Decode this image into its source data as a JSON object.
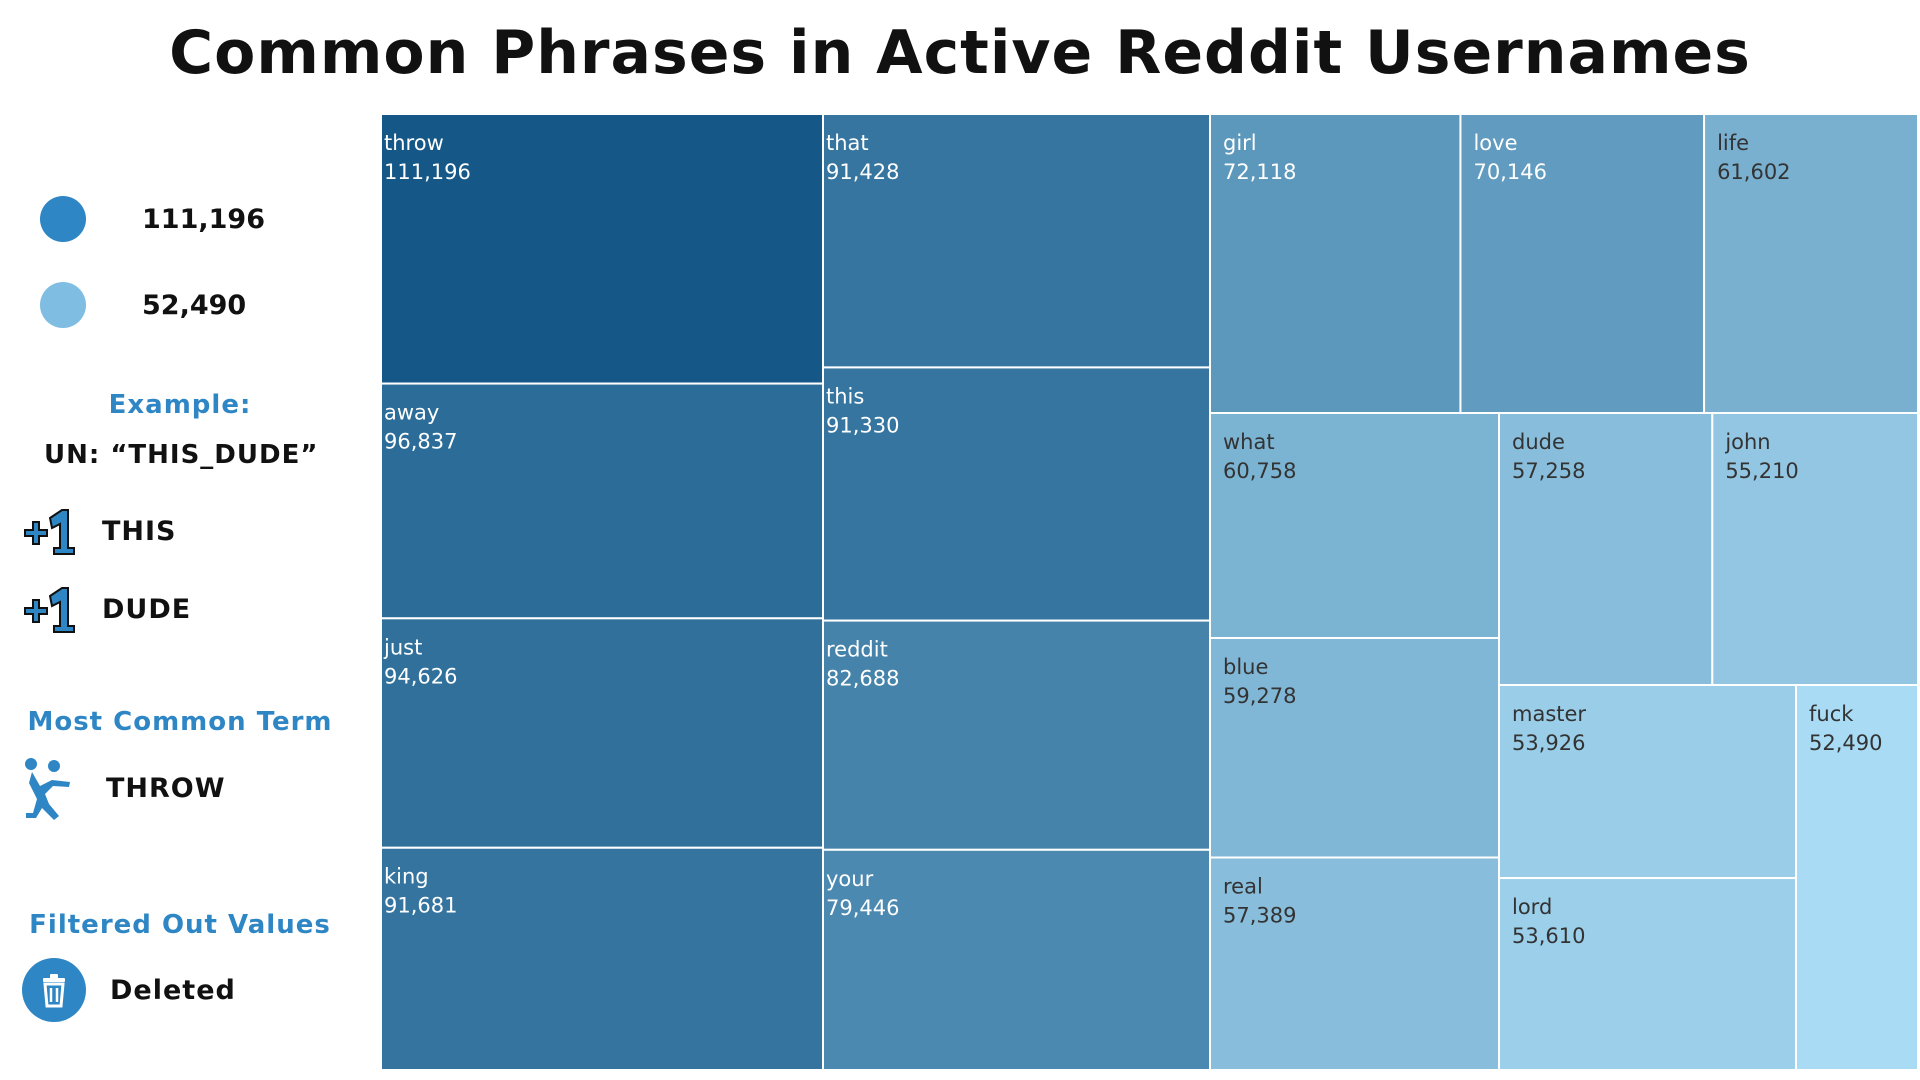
{
  "title": "Common Phrases in Active Reddit Usernames",
  "legend": {
    "high_value": "111,196",
    "low_value": "52,490",
    "high_color": "#2f86c5",
    "low_color": "#7fbde3"
  },
  "example": {
    "heading": "Example:",
    "username": "UN: “THIS_DUDE”",
    "items": [
      {
        "icon": "plus-one-icon",
        "label": "THIS"
      },
      {
        "icon": "plus-one-icon",
        "label": "DUDE"
      }
    ]
  },
  "most_common": {
    "heading": "Most Common Term",
    "icon": "throwing-person-icon",
    "label": "THROW"
  },
  "filtered": {
    "heading": "Filtered Out Values",
    "icon": "trash-icon",
    "label": "Deleted"
  },
  "chart_data": {
    "type": "treemap",
    "title": "Common Phrases in Active Reddit Usernames",
    "items": [
      {
        "label": "throw",
        "value": 111196,
        "value_label": "111,196"
      },
      {
        "label": "away",
        "value": 96837,
        "value_label": "96,837"
      },
      {
        "label": "just",
        "value": 94626,
        "value_label": "94,626"
      },
      {
        "label": "king",
        "value": 91681,
        "value_label": "91,681"
      },
      {
        "label": "that",
        "value": 91428,
        "value_label": "91,428"
      },
      {
        "label": "this",
        "value": 91330,
        "value_label": "91,330"
      },
      {
        "label": "reddit",
        "value": 82688,
        "value_label": "82,688"
      },
      {
        "label": "your",
        "value": 79446,
        "value_label": "79,446"
      },
      {
        "label": "girl",
        "value": 72118,
        "value_label": "72,118"
      },
      {
        "label": "love",
        "value": 70146,
        "value_label": "70,146"
      },
      {
        "label": "life",
        "value": 61602,
        "value_label": "61,602"
      },
      {
        "label": "what",
        "value": 60758,
        "value_label": "60,758"
      },
      {
        "label": "blue",
        "value": 59278,
        "value_label": "59,278"
      },
      {
        "label": "real",
        "value": 57389,
        "value_label": "57,389"
      },
      {
        "label": "dude",
        "value": 57258,
        "value_label": "57,258"
      },
      {
        "label": "john",
        "value": 55210,
        "value_label": "55,210"
      },
      {
        "label": "master",
        "value": 53926,
        "value_label": "53,926"
      },
      {
        "label": "lord",
        "value": 53610,
        "value_label": "53,610"
      },
      {
        "label": "fuck",
        "value": 52490,
        "value_label": "52,490"
      }
    ],
    "color_scale": {
      "min_color": "#a9dbf4",
      "max_color": "#155887"
    }
  }
}
